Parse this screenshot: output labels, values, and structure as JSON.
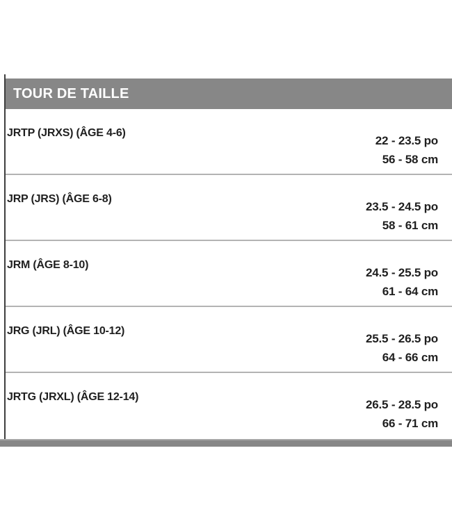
{
  "size_chart": {
    "header": "TOUR DE TAILLE",
    "rows": [
      {
        "label": "JRTP (JRXS) (ÂGE 4-6)",
        "inches": "22 - 23.5 po",
        "cm": "56 - 58 cm"
      },
      {
        "label": "JRP (JRS) (ÂGE 6-8)",
        "inches": "23.5 - 24.5 po",
        "cm": "58 - 61 cm"
      },
      {
        "label": "JRM (ÂGE 8-10)",
        "inches": "24.5 - 25.5 po",
        "cm": "61 - 64 cm"
      },
      {
        "label": "JRG (JRL) (ÂGE 10-12)",
        "inches": "25.5 - 26.5 po",
        "cm": "64 - 66 cm"
      },
      {
        "label": "JRTG (JRXL) (ÂGE 12-14)",
        "inches": "26.5 - 28.5 po",
        "cm": "66 - 71 cm"
      }
    ]
  },
  "colors": {
    "header_bg": "#878787",
    "header_text": "#ffffff",
    "row_text": "#1f1f1f",
    "divider": "#b3b3b3",
    "left_border": "#3e3e3e",
    "next_section_bar": "#878787"
  }
}
